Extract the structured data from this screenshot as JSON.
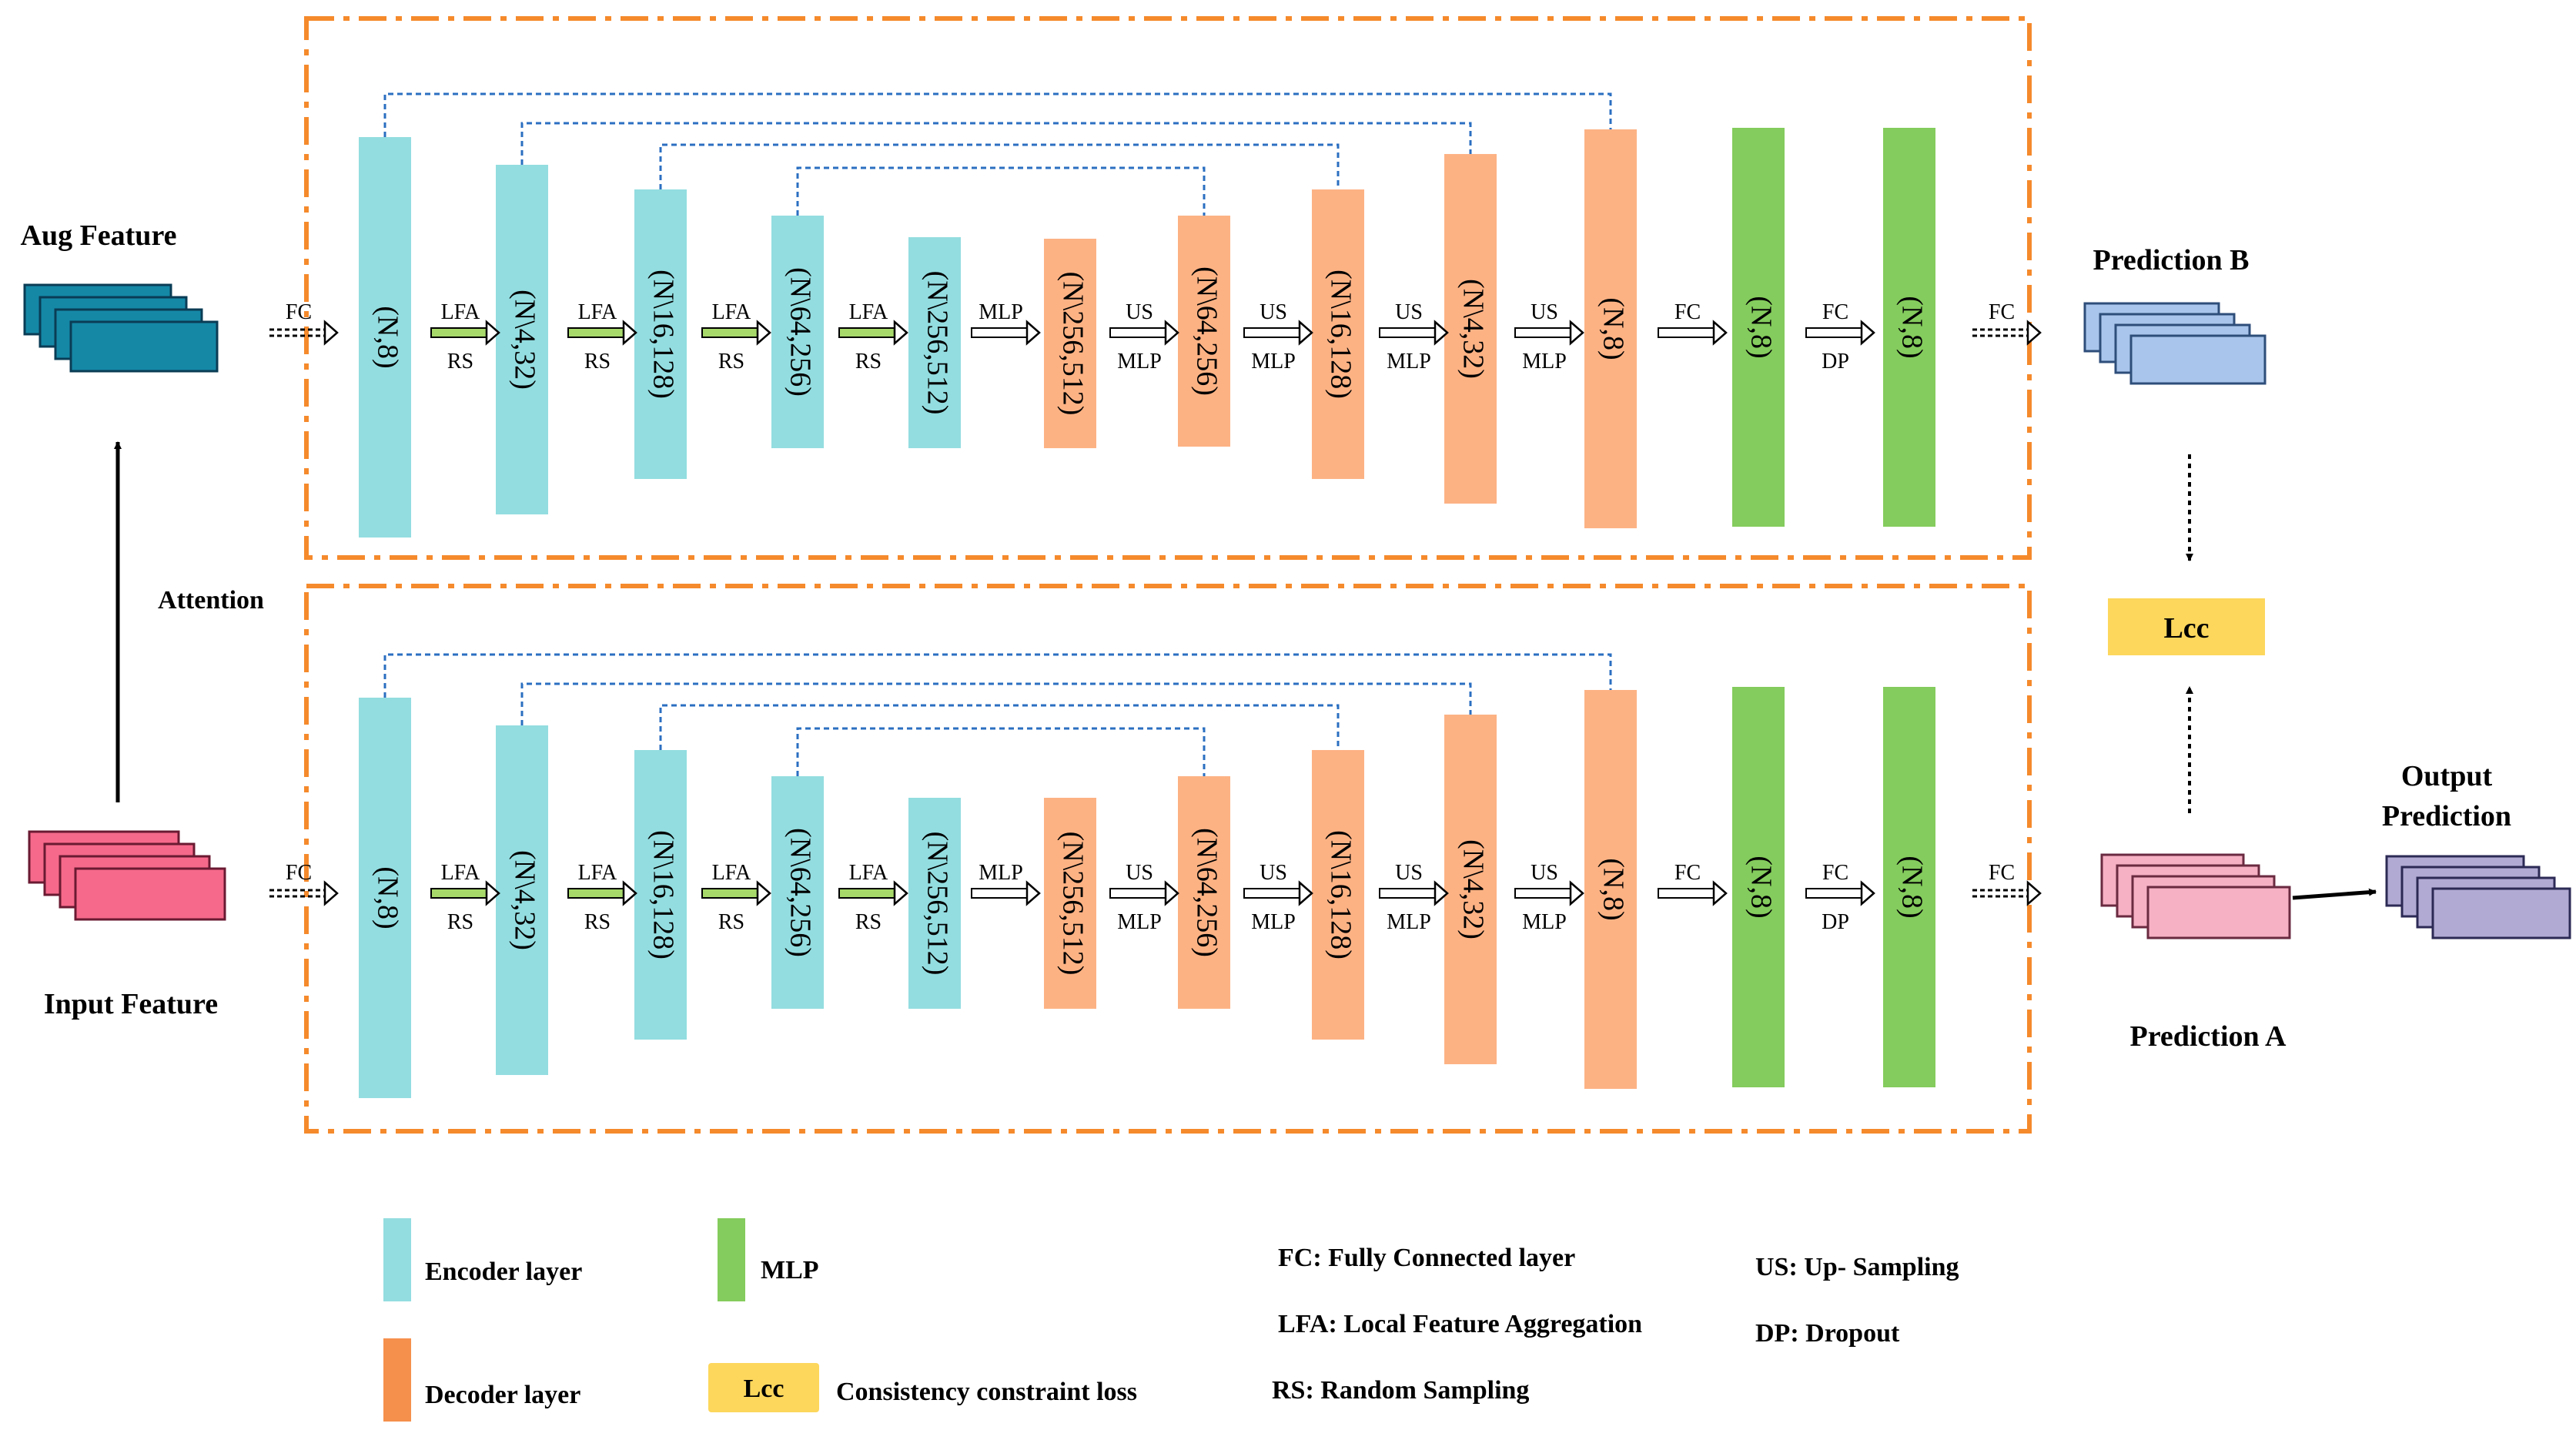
{
  "colors": {
    "encoder": "#93dde0",
    "decoder": "#fdb284",
    "mlp": "#84cc5d",
    "lcc": "#fdd75c",
    "dash_orange": "#f58a2c",
    "skip_blue": "#2b6fc1",
    "aug_fill": "#1588a6",
    "aug_stroke": "#0a3c55",
    "input_fill": "#f6698a",
    "input_stroke": "#6a1a32",
    "predB_fill": "#a9c5eb",
    "predB_stroke": "#2e4e7a",
    "predA_fill": "#f7b1c5",
    "predA_stroke": "#6a2a40",
    "out_fill": "#b1abd4",
    "out_stroke": "#2c2a55",
    "legend_decoder": "#f5904c"
  },
  "labels": {
    "aug_feature": "Aug Feature",
    "input_feature": "Input Feature",
    "attention": "Attention",
    "prediction_b": "Prediction B",
    "prediction_a": "Prediction A",
    "output_prediction_1": "Output",
    "output_prediction_2": "Prediction",
    "lcc": "Lcc"
  },
  "pipelines": [
    {
      "name": "top",
      "layers": [
        {
          "kind": "encoder",
          "label": "(N,8)"
        },
        {
          "kind": "encoder",
          "label": "(N\\4,32)"
        },
        {
          "kind": "encoder",
          "label": "(N\\16,128)"
        },
        {
          "kind": "encoder",
          "label": "(N\\64,256)"
        },
        {
          "kind": "encoder",
          "label": "(N\\256,512)"
        },
        {
          "kind": "decoder",
          "label": "(N\\256,512)"
        },
        {
          "kind": "decoder",
          "label": "(N\\64,256)"
        },
        {
          "kind": "decoder",
          "label": "(N\\16,128)"
        },
        {
          "kind": "decoder",
          "label": "(N\\4,32)"
        },
        {
          "kind": "decoder",
          "label": "(N,8)"
        },
        {
          "kind": "mlp",
          "label": "(N,8)"
        },
        {
          "kind": "mlp",
          "label": "(N,8)"
        }
      ],
      "ops": [
        {
          "top": "FC",
          "bottom": ""
        },
        {
          "top": "LFA",
          "bottom": "RS"
        },
        {
          "top": "LFA",
          "bottom": "RS"
        },
        {
          "top": "LFA",
          "bottom": "RS"
        },
        {
          "top": "LFA",
          "bottom": "RS"
        },
        {
          "top": "MLP",
          "bottom": ""
        },
        {
          "top": "US",
          "bottom": "MLP"
        },
        {
          "top": "US",
          "bottom": "MLP"
        },
        {
          "top": "US",
          "bottom": "MLP"
        },
        {
          "top": "US",
          "bottom": "MLP"
        },
        {
          "top": "FC",
          "bottom": ""
        },
        {
          "top": "FC",
          "bottom": "DP"
        },
        {
          "top": "FC",
          "bottom": ""
        }
      ]
    },
    {
      "name": "bottom",
      "layers": [
        {
          "kind": "encoder",
          "label": "(N,8)"
        },
        {
          "kind": "encoder",
          "label": "(N\\4,32)"
        },
        {
          "kind": "encoder",
          "label": "(N\\16,128)"
        },
        {
          "kind": "encoder",
          "label": "(N\\64,256)"
        },
        {
          "kind": "encoder",
          "label": "(N\\256,512)"
        },
        {
          "kind": "decoder",
          "label": "(N\\256,512)"
        },
        {
          "kind": "decoder",
          "label": "(N\\64,256)"
        },
        {
          "kind": "decoder",
          "label": "(N\\16,128)"
        },
        {
          "kind": "decoder",
          "label": "(N\\4,32)"
        },
        {
          "kind": "decoder",
          "label": "(N,8)"
        },
        {
          "kind": "mlp",
          "label": "(N,8)"
        },
        {
          "kind": "mlp",
          "label": "(N,8)"
        }
      ],
      "ops": [
        {
          "top": "FC",
          "bottom": ""
        },
        {
          "top": "LFA",
          "bottom": "RS"
        },
        {
          "top": "LFA",
          "bottom": "RS"
        },
        {
          "top": "LFA",
          "bottom": "RS"
        },
        {
          "top": "LFA",
          "bottom": "RS"
        },
        {
          "top": "MLP",
          "bottom": ""
        },
        {
          "top": "US",
          "bottom": "MLP"
        },
        {
          "top": "US",
          "bottom": "MLP"
        },
        {
          "top": "US",
          "bottom": "MLP"
        },
        {
          "top": "US",
          "bottom": "MLP"
        },
        {
          "top": "FC",
          "bottom": ""
        },
        {
          "top": "FC",
          "bottom": "DP"
        },
        {
          "top": "FC",
          "bottom": ""
        }
      ]
    }
  ],
  "legend": {
    "encoder": "Encoder layer",
    "mlp": "MLP",
    "decoder": "Decoder layer",
    "lcc_box": "Lcc",
    "lcc_desc": "Consistency constraint loss",
    "abbrevs": [
      "FC: Fully Connected layer",
      "LFA: Local Feature Aggregation",
      "RS: Random Sampling",
      "US: Up- Sampling",
      "DP: Dropout"
    ]
  }
}
